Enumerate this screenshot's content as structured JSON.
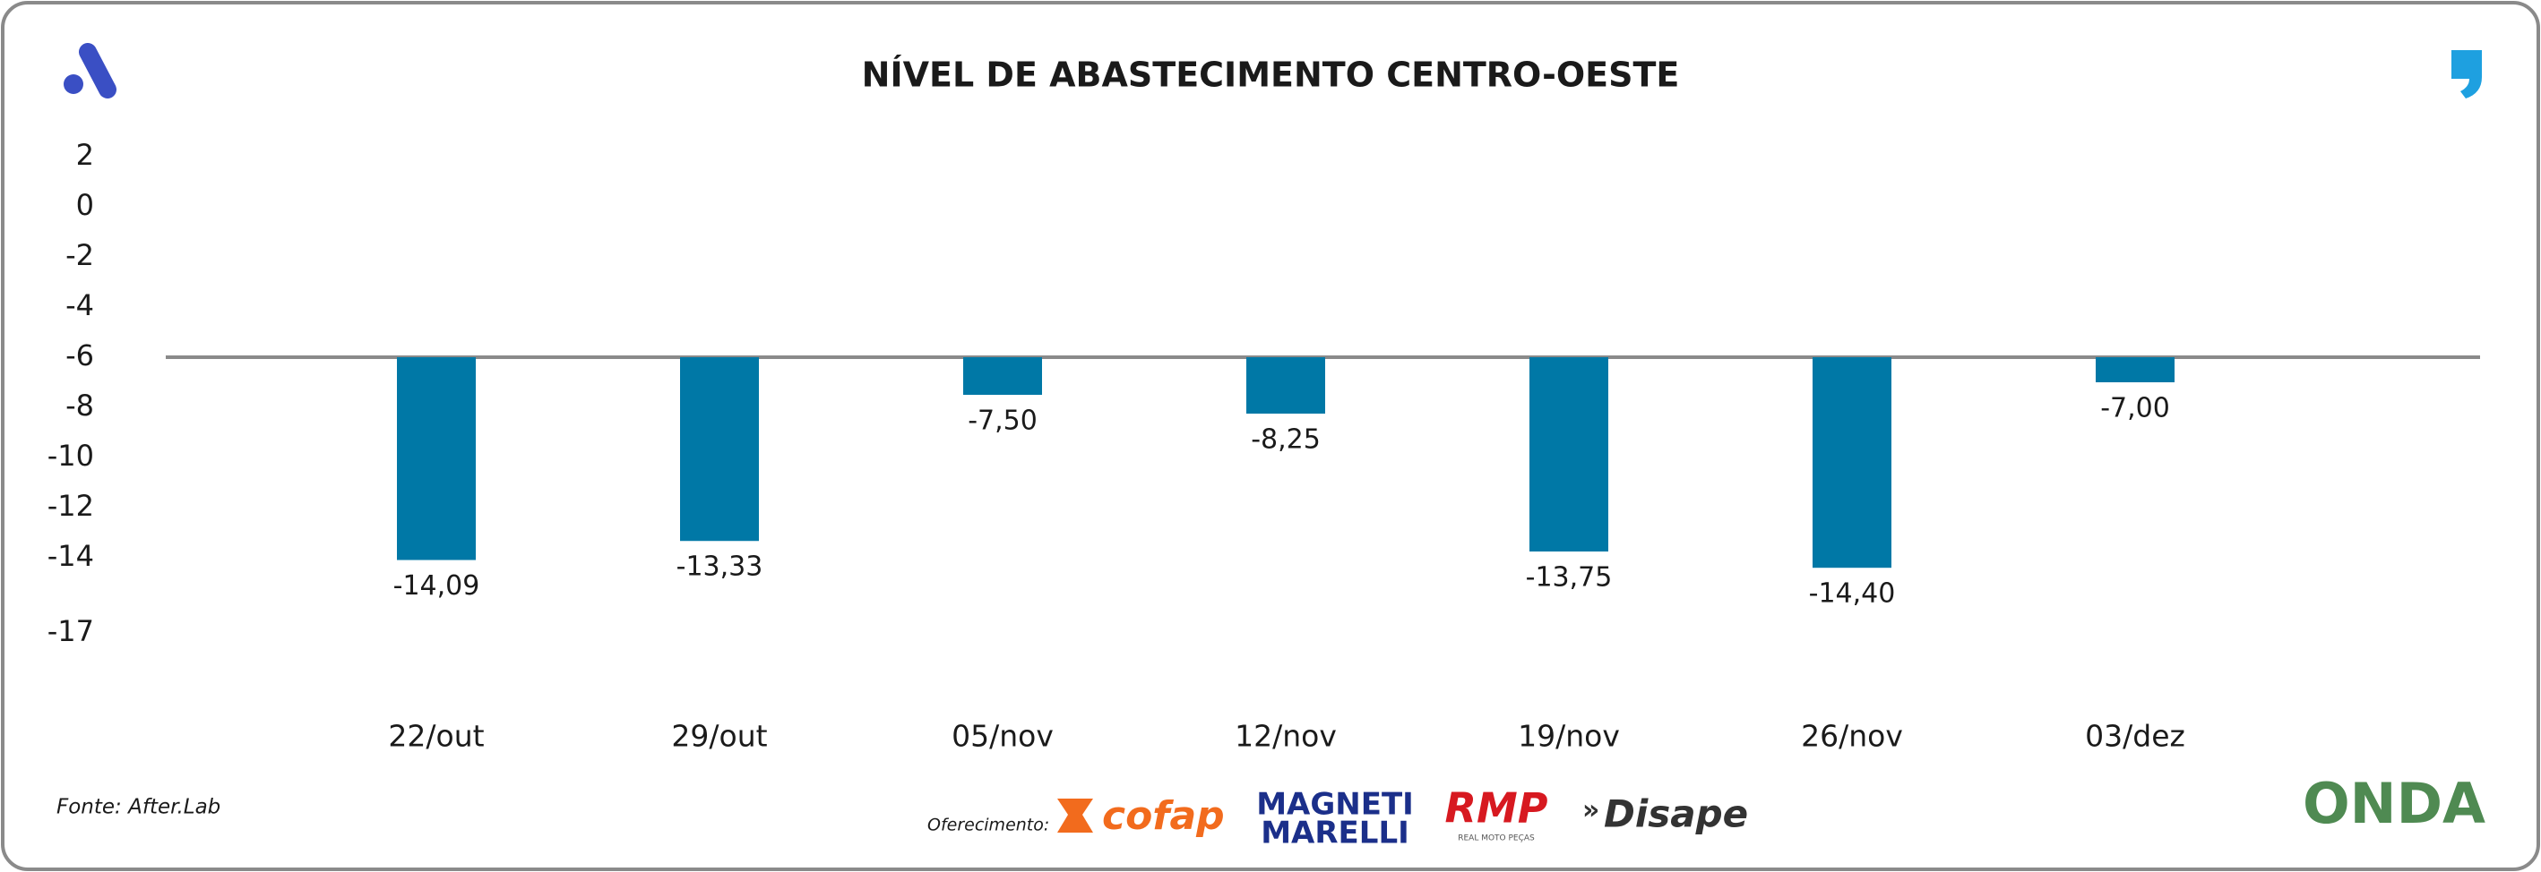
{
  "chart_data": {
    "type": "bar",
    "title": "NÍVEL DE ABASTECIMENTO CENTRO-OESTE",
    "categories": [
      "22/out",
      "29/out",
      "05/nov",
      "12/nov",
      "19/nov",
      "26/nov",
      "03/dez"
    ],
    "values": [
      -14.09,
      -13.33,
      -7.5,
      -8.25,
      -13.75,
      -14.4,
      -7.0
    ],
    "value_labels": [
      "-14,09",
      "-13,33",
      "-7,50",
      "-8,25",
      "-13,75",
      "-14,40",
      "-7,00"
    ],
    "color": "#0078a6",
    "baseline": -6,
    "ylim": [
      -17,
      2
    ],
    "yticks": [
      2,
      0,
      -2,
      -4,
      -6,
      -8,
      -10,
      -12,
      -14,
      -17
    ]
  },
  "footer": {
    "source": "Fonte: After.Lab",
    "sponsor_label": "Oferecimento:",
    "sponsors": [
      "cofap",
      "MAGNETI",
      "MARELLI",
      "RMP",
      "REAL MOTO PEÇAS",
      "Disape"
    ],
    "brand": "ONDA"
  }
}
